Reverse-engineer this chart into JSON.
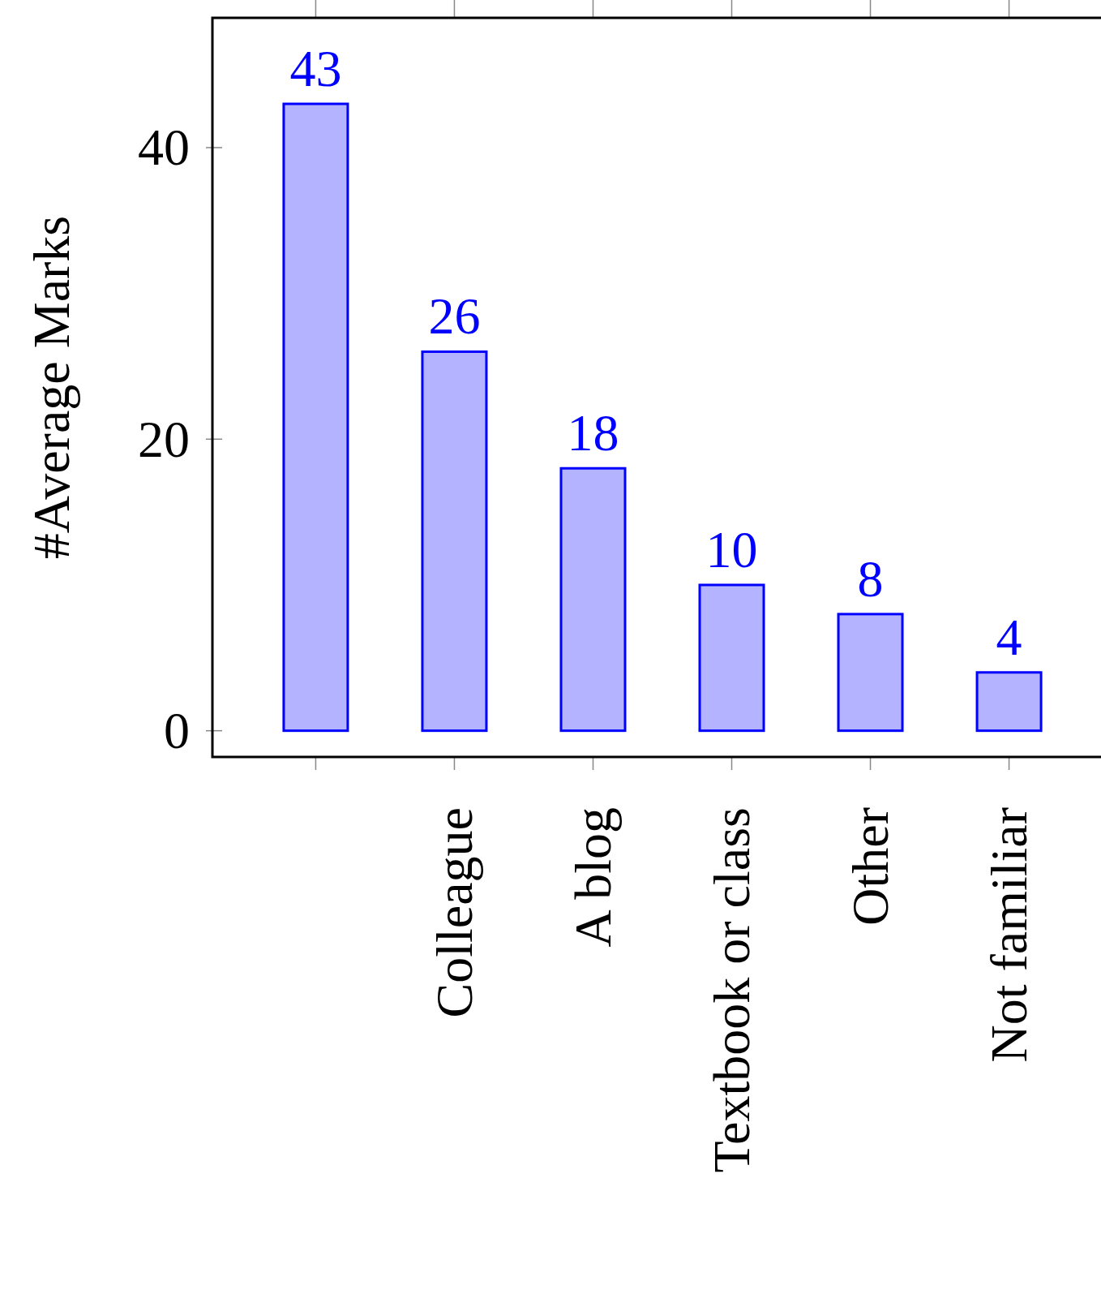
{
  "chart_data": {
    "type": "bar",
    "ylabel": "#Average Marks",
    "categories": [
      null,
      "Colleague",
      "A blog",
      "Textbook or class",
      "Other",
      "Not familiar"
    ],
    "values": [
      43,
      26,
      18,
      10,
      8,
      4
    ],
    "color": "#b3b3ff",
    "ylim": [
      -1.8,
      48.9
    ],
    "yticks": [
      0,
      20,
      40
    ],
    "grid": false,
    "data_labels": true
  }
}
